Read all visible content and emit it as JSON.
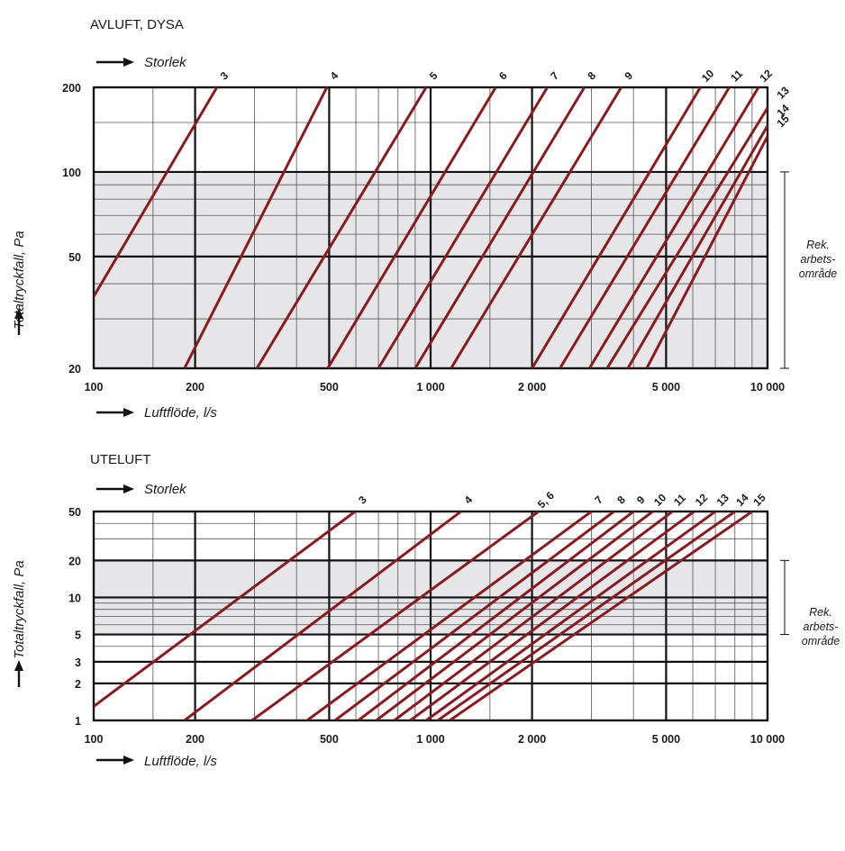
{
  "chart_data": [
    {
      "type": "line",
      "title": "AVLUFT, DYSA",
      "size_label": "Storlek",
      "xlabel": "Luftflöde, l/s",
      "ylabel": "Totaltryckfall, Pa",
      "xscale": "log",
      "yscale": "log",
      "xlim": [
        100,
        10000
      ],
      "ylim": [
        20,
        200
      ],
      "xticks": [
        100,
        200,
        500,
        1000,
        2000,
        5000,
        10000
      ],
      "xtick_labels": [
        "100",
        "200",
        "500",
        "1 000",
        "2 000",
        "5 000",
        "10 000"
      ],
      "yticks": [
        20,
        50,
        100,
        200
      ],
      "ytick_labels": [
        "20",
        "50",
        "100",
        "200"
      ],
      "grid": true,
      "shaded_band": {
        "y": [
          20,
          100
        ],
        "label": [
          "Rek.",
          "arbets-",
          "område"
        ]
      },
      "line_color": "#8b1a1f",
      "series": [
        {
          "name": "3",
          "points": [
            [
              100,
              36
            ],
            [
              232,
              200
            ]
          ]
        },
        {
          "name": "4",
          "points": [
            [
              186,
              20
            ],
            [
              492,
              200
            ]
          ]
        },
        {
          "name": "5",
          "points": [
            [
              305,
              20
            ],
            [
              970,
              200
            ]
          ]
        },
        {
          "name": "6",
          "points": [
            [
              495,
              20
            ],
            [
              1560,
              200
            ]
          ]
        },
        {
          "name": "7",
          "points": [
            [
              700,
              20
            ],
            [
              2220,
              200
            ]
          ]
        },
        {
          "name": "8",
          "points": [
            [
              900,
              20
            ],
            [
              2860,
              200
            ]
          ]
        },
        {
          "name": "9",
          "points": [
            [
              1150,
              20
            ],
            [
              3680,
              200
            ]
          ]
        },
        {
          "name": "10",
          "points": [
            [
              2000,
              20
            ],
            [
              6320,
              200
            ]
          ]
        },
        {
          "name": "11",
          "points": [
            [
              2420,
              20
            ],
            [
              7700,
              200
            ]
          ]
        },
        {
          "name": "12",
          "points": [
            [
              2960,
              20
            ],
            [
              9400,
              200
            ]
          ]
        },
        {
          "name": "13",
          "points": [
            [
              3340,
              20
            ],
            [
              10000,
              169
            ]
          ]
        },
        {
          "name": "14",
          "points": [
            [
              3850,
              20
            ],
            [
              10000,
              146
            ]
          ]
        },
        {
          "name": "15",
          "points": [
            [
              4380,
              20
            ],
            [
              10000,
              134
            ]
          ]
        }
      ]
    },
    {
      "type": "line",
      "title": "UTELUFT",
      "size_label": "Storlek",
      "xlabel": "Luftflöde, l/s",
      "ylabel": "Totaltryckfall, Pa",
      "xscale": "log",
      "yscale": "log",
      "xlim": [
        100,
        10000
      ],
      "ylim": [
        1,
        50
      ],
      "xticks": [
        100,
        200,
        500,
        1000,
        2000,
        5000,
        10000
      ],
      "xtick_labels": [
        "100",
        "200",
        "500",
        "1 000",
        "2 000",
        "5 000",
        "10 000"
      ],
      "yticks": [
        1,
        2,
        3,
        5,
        10,
        20,
        50
      ],
      "ytick_labels": [
        "1",
        "2",
        "3",
        "5",
        "10",
        "20",
        "50"
      ],
      "grid": true,
      "shaded_band": {
        "y": [
          5,
          20
        ],
        "label": [
          "Rek.",
          "arbets-",
          "område"
        ]
      },
      "line_color": "#8b1a1f",
      "series": [
        {
          "name": "3",
          "points": [
            [
              100,
              1.3
            ],
            [
              597,
              50
            ]
          ]
        },
        {
          "name": "4",
          "points": [
            [
              186,
              1
            ],
            [
              1230,
              50
            ]
          ]
        },
        {
          "name": "5, 6",
          "points": [
            [
              295,
              1
            ],
            [
              2090,
              50
            ]
          ]
        },
        {
          "name": "7",
          "points": [
            [
              430,
              1
            ],
            [
              3000,
              50
            ]
          ]
        },
        {
          "name": "8",
          "points": [
            [
              520,
              1
            ],
            [
              3500,
              50
            ]
          ]
        },
        {
          "name": "9",
          "points": [
            [
              610,
              1
            ],
            [
              4000,
              50
            ]
          ]
        },
        {
          "name": "10",
          "points": [
            [
              690,
              1
            ],
            [
              4560,
              50
            ]
          ]
        },
        {
          "name": "11",
          "points": [
            [
              780,
              1
            ],
            [
              5220,
              50
            ]
          ]
        },
        {
          "name": "12",
          "points": [
            [
              870,
              1
            ],
            [
              6050,
              50
            ]
          ]
        },
        {
          "name": "13",
          "points": [
            [
              970,
              1
            ],
            [
              7000,
              50
            ]
          ]
        },
        {
          "name": "14",
          "points": [
            [
              1050,
              1
            ],
            [
              8000,
              50
            ]
          ]
        },
        {
          "name": "15",
          "points": [
            [
              1140,
              1
            ],
            [
              9000,
              50
            ]
          ]
        }
      ]
    }
  ]
}
